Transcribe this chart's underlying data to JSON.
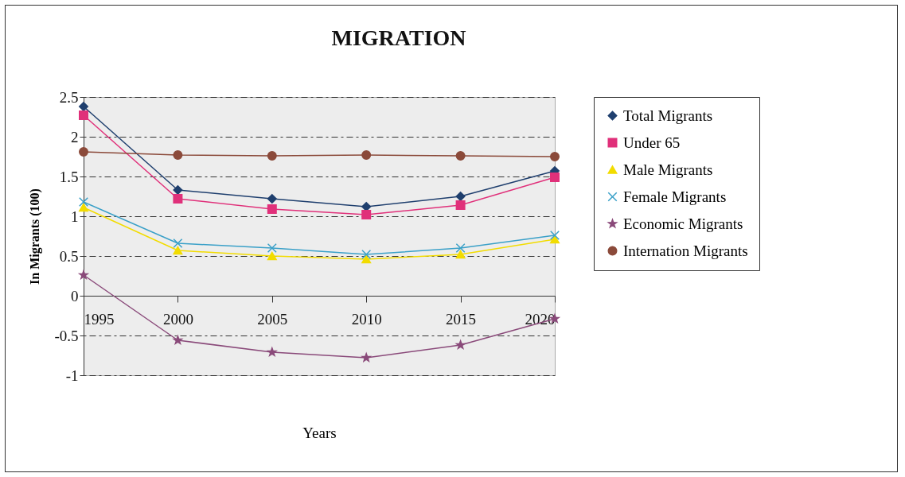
{
  "chart_data": {
    "type": "line",
    "title": "MIGRATION",
    "xlabel": "Years",
    "ylabel": "In Migrants (100)",
    "categories": [
      "1995",
      "2000",
      "2005",
      "2010",
      "2015",
      "2020"
    ],
    "ylim": [
      -1,
      2.5
    ],
    "yticks": [
      -1,
      -0.5,
      0,
      0.5,
      1,
      1.5,
      2,
      2.5
    ],
    "grid": "y",
    "legend": "right",
    "series": [
      {
        "name": "Total Migrants",
        "color": "#1f3f6e",
        "marker": "diamond",
        "values": [
          2.38,
          1.33,
          1.22,
          1.12,
          1.25,
          1.57
        ]
      },
      {
        "name": "Under 65",
        "color": "#e0307a",
        "marker": "square",
        "values": [
          2.27,
          1.22,
          1.09,
          1.02,
          1.14,
          1.49
        ]
      },
      {
        "name": "Male Migrants",
        "color": "#f2dc00",
        "marker": "triangle",
        "values": [
          1.11,
          0.57,
          0.5,
          0.46,
          0.52,
          0.71
        ]
      },
      {
        "name": "Female Migrants",
        "color": "#3aa0c8",
        "marker": "cross",
        "values": [
          1.18,
          0.66,
          0.6,
          0.52,
          0.6,
          0.76
        ]
      },
      {
        "name": "Economic Migrants",
        "color": "#8a4a7a",
        "marker": "star",
        "values": [
          0.26,
          -0.56,
          -0.71,
          -0.78,
          -0.62,
          -0.29
        ]
      },
      {
        "name": "Internation Migrants",
        "color": "#8b4a3a",
        "marker": "circle",
        "values": [
          1.81,
          1.77,
          1.76,
          1.77,
          1.76,
          1.75
        ]
      }
    ]
  }
}
